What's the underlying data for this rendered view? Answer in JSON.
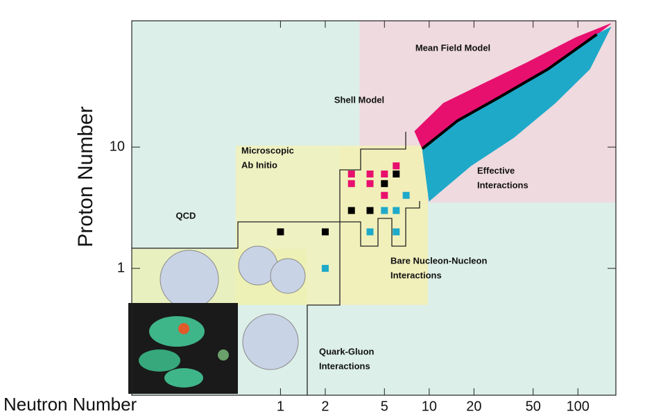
{
  "chart_data": {
    "type": "region-map",
    "y_label": "Proton Number",
    "x_label": "Neutron Number",
    "log_x": true,
    "log_y": true,
    "xlim": [
      0.1,
      180
    ],
    "ylim": [
      0.09,
      110
    ],
    "xticks": [
      1,
      2,
      5,
      10,
      20,
      50,
      100
    ],
    "yticks": [
      1,
      10
    ],
    "regions": [
      {
        "xlim": [
          3.4,
          180
        ],
        "ylim": [
          3.5,
          110
        ],
        "color": "#f6d3db"
      },
      {
        "xlim": [
          0.5,
          9.8
        ],
        "ylim": [
          0.5,
          10.3
        ],
        "color": "#f4f2b4"
      },
      {
        "xlim": [
          2.5,
          9.8
        ],
        "ylim": [
          0.5,
          10
        ],
        "color": "#f1efb8"
      },
      {
        "xlim": [
          0.1,
          1.5
        ],
        "ylim": [
          0.5,
          1.45
        ],
        "color": "#eef0b0"
      }
    ],
    "annotations": [
      [
        "Mean Field Model"
      ],
      [
        "Shell Model"
      ],
      [
        "Microscopic",
        "Ab Initio"
      ],
      [
        "Effective",
        "Interactions"
      ],
      [
        "QCD"
      ],
      [
        "Bare Nucleon-Nucleon",
        "Interactions"
      ],
      [
        "Quark-Gluon",
        "Interactions"
      ]
    ],
    "bands": [
      {
        "color": "#e8106e",
        "x": [
          8,
          12.5,
          24,
          46,
          97,
          166,
          134,
          63,
          30,
          15.5,
          9
        ],
        "values": [
          13.5,
          23,
          34,
          50,
          80,
          104,
          85,
          44,
          26,
          16.5,
          9.7
        ]
      },
      {
        "color": "#1fa9c9",
        "x": [
          9,
          15.5,
          30,
          63,
          134,
          166,
          120,
          70,
          37,
          19,
          10
        ],
        "values": [
          9.7,
          16.5,
          26,
          44,
          85,
          97,
          44,
          23,
          12,
          7,
          3.6
        ]
      }
    ],
    "stable_line": {
      "color": "#000000",
      "x": [
        9,
        15.5,
        30,
        63,
        134
      ],
      "values": [
        9.7,
        16.5,
        26,
        44,
        85
      ]
    },
    "series": [
      {
        "color": "#e8106e",
        "x": [
          3,
          4,
          5,
          3,
          4,
          5,
          6
        ],
        "values": [
          6,
          6,
          6,
          5,
          5,
          4,
          7
        ]
      },
      {
        "color": "#000000",
        "x": [
          1,
          2,
          6,
          3,
          4,
          5
        ],
        "values": [
          2,
          2,
          6,
          3,
          3,
          5
        ]
      },
      {
        "color": "#1fa9c9",
        "x": [
          2,
          5,
          6,
          4,
          6,
          7
        ],
        "values": [
          1,
          3,
          3,
          2,
          2,
          4
        ]
      }
    ]
  }
}
